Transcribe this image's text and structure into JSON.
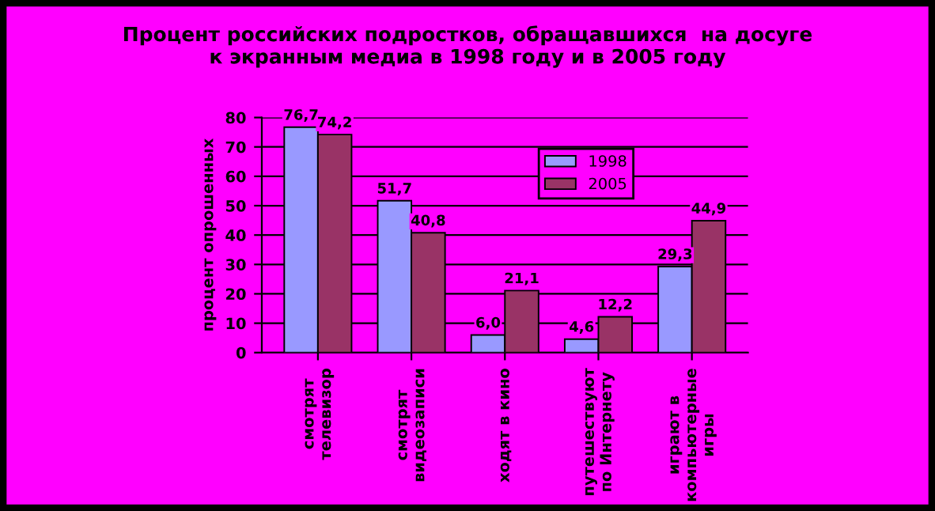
{
  "chart_data": {
    "type": "bar",
    "title": "Процент российских подростков, обращавшихся  на досуге\nк экранным медиа в 1998 году и в 2005 году",
    "ylabel": "процент опрошенных",
    "categories": [
      "смотрят\nтелевизор",
      "смотрят\nвидеозаписи",
      "ходят в кино",
      "путешествуют\nпо Интернету",
      "играют в\nкомпьютерные\nигры"
    ],
    "series": [
      {
        "name": "1998",
        "color": "#9999ff",
        "values": [
          76.7,
          51.7,
          6.0,
          4.6,
          29.3
        ],
        "value_labels": [
          "76,7",
          "51,7",
          "6,0",
          "4,6",
          "29,3"
        ]
      },
      {
        "name": "2005",
        "color": "#993366",
        "values": [
          74.2,
          40.8,
          21.1,
          12.2,
          44.9
        ],
        "value_labels": [
          "74,2",
          "40,8",
          "21,1",
          "12,2",
          "44,9"
        ]
      }
    ],
    "ylim": [
      0,
      80
    ],
    "yticks": [
      0,
      10,
      20,
      30,
      40,
      50,
      60,
      70,
      80
    ],
    "grid": "y",
    "legend": "top right"
  }
}
